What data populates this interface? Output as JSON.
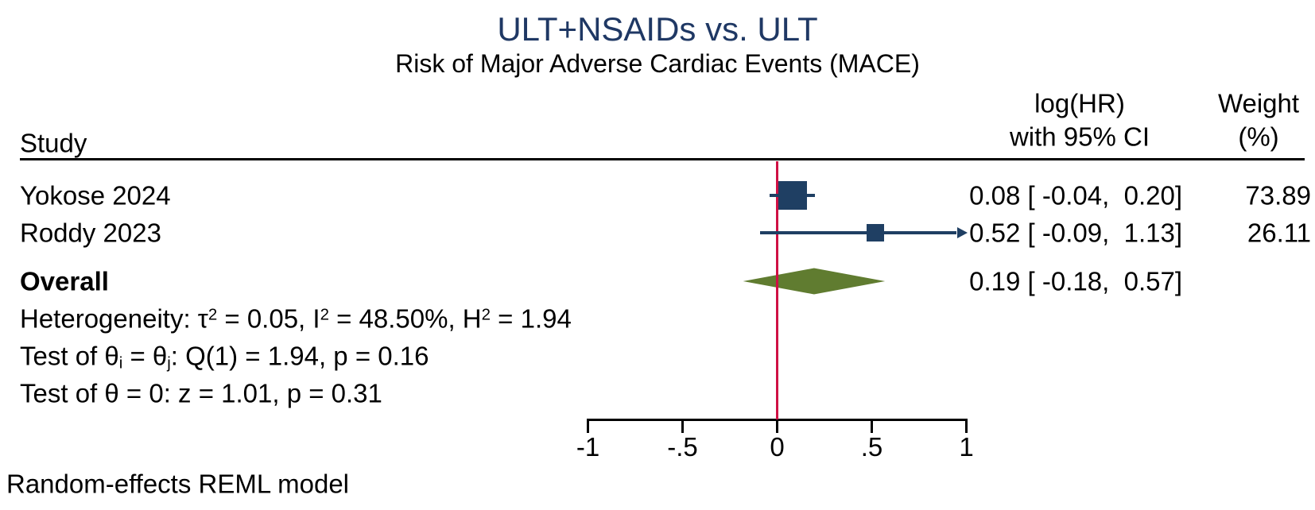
{
  "title": "ULT+NSAIDs vs. ULT",
  "subtitle": "Risk of Major Adverse Cardiac Events (MACE)",
  "table": {
    "study_header": "Study",
    "effect_header_line1": "log(HR)",
    "effect_header_line2": "with 95% CI",
    "weight_header_line1": "Weight",
    "weight_header_line2": "(%)"
  },
  "rows": [
    {
      "label": "Yokose 2024",
      "effect": "0.08 [ -0.04,  0.20]",
      "weight": "73.89"
    },
    {
      "label": "Roddy 2023",
      "effect": "0.52 [ -0.09,  1.13]",
      "weight": "26.11"
    }
  ],
  "overall_row": {
    "label": "Overall",
    "effect": "0.19 [ -0.18,  0.57]"
  },
  "stats": {
    "heterogeneity": {
      "pre": "Heterogeneity: τ",
      "sup1": "2",
      "mid1": " = 0.05, I",
      "sup2": "2",
      "mid2": " = 48.50%, H",
      "sup3": "2",
      "end": " = 1.94"
    },
    "test_q": {
      "pre": "Test of θ",
      "sub1": "i",
      "mid1": " = θ",
      "sub2": "j",
      "end": ": Q(1) = 1.94, p = 0.16"
    },
    "test_z": "Test of θ = 0: z = 1.01, p = 0.31"
  },
  "footer": "Random-effects REML model",
  "colors": {
    "title": "#1f3864",
    "marker": "#1f3f63",
    "null_line": "#cf1044",
    "diamond": "#607c30",
    "axis": "#000000",
    "text": "#000000"
  },
  "chart_data": {
    "type": "scatter",
    "subtype": "forest-plot",
    "title": "ULT+NSAIDs vs. ULT",
    "subtitle": "Risk of Major Adverse Cardiac Events (MACE)",
    "effect_measure": "log(HR)",
    "ci_level": "95%",
    "xlabel": "",
    "xlim": [
      -1,
      1
    ],
    "x_ticks": [
      -1,
      -0.5,
      0,
      0.5,
      1
    ],
    "x_tick_labels": [
      "-1",
      "-.5",
      "0",
      ".5",
      "1"
    ],
    "null_line_x": 0,
    "studies": [
      {
        "label": "Yokose 2024",
        "estimate": 0.08,
        "ci_lower": -0.04,
        "ci_upper": 0.2,
        "weight_pct": 73.89,
        "ci_clipped": false
      },
      {
        "label": "Roddy 2023",
        "estimate": 0.52,
        "ci_lower": -0.09,
        "ci_upper": 1.13,
        "weight_pct": 26.11,
        "ci_clipped": true
      }
    ],
    "overall": {
      "label": "Overall",
      "estimate": 0.19,
      "ci_lower": -0.18,
      "ci_upper": 0.57
    },
    "heterogeneity": "Heterogeneity: τ² = 0.05, I² = 48.50%, H² = 1.94",
    "test_of_equality": "Test of θi = θj: Q(1) = 1.94, p = 0.16",
    "test_of_zero": "Test of θ = 0: z = 1.01, p = 0.31",
    "model_note": "Random-effects REML model",
    "legend_position": "none",
    "grid": false
  }
}
